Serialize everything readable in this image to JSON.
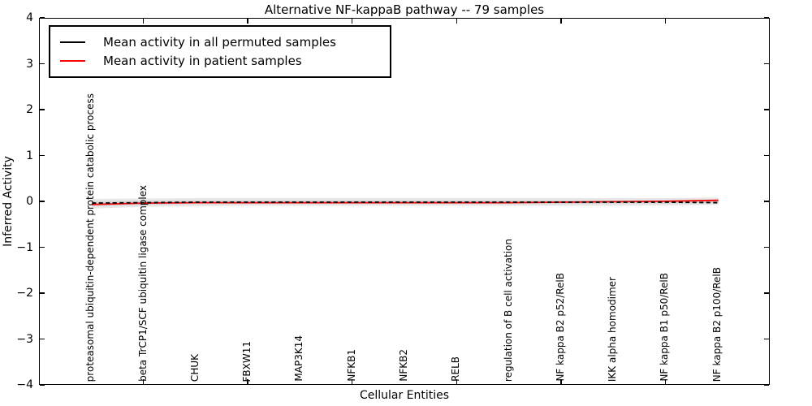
{
  "figure": {
    "title": "Alternative NF-kappaB pathway -- 79 samples",
    "xlabel": "Cellular Entities",
    "ylabel": "Inferred Activity"
  },
  "legend": {
    "position": "upper left",
    "entries": [
      {
        "label": "Mean activity in all permuted samples",
        "color": "#000000"
      },
      {
        "label": "Mean activity in patient samples",
        "color": "#ff0000"
      }
    ]
  },
  "chart_data": {
    "type": "line",
    "title": "Alternative NF-kappaB pathway -- 79 samples",
    "xlabel": "Cellular Entities",
    "ylabel": "Inferred Activity",
    "ylim": [
      -4,
      4
    ],
    "yticks": [
      4,
      3,
      2,
      1,
      0,
      -1,
      -2,
      -3,
      -4
    ],
    "xlim_units": [
      0,
      14
    ],
    "xtick_units": [
      2,
      4,
      6,
      8,
      10,
      12
    ],
    "grid": false,
    "legend_position": "upper left",
    "categories": [
      "proteasomal ubiquitin-dependent protein catabolic process",
      "beta TrCP1/SCF ubiquitin ligase complex",
      "CHUK",
      "FBXW11",
      "MAP3K14",
      "NFKB1",
      "NFKB2",
      "RELB",
      "regulation of B cell activation",
      "NF kappa B2 p52/RelB",
      "IKK alpha homodimer",
      "NF kappa B1 p50/RelB",
      "NF kappa B2 p100/RelB"
    ],
    "series": [
      {
        "name": "Mean activity in all permuted samples",
        "color": "#000000",
        "style": "dashed",
        "values": [
          -0.02,
          -0.01,
          0.0,
          0.0,
          0.0,
          0.0,
          0.0,
          0.0,
          0.0,
          0.0,
          0.0,
          0.0,
          -0.01
        ]
      },
      {
        "name": "Mean activity in patient samples",
        "color": "#ff0000",
        "style": "solid",
        "values": [
          -0.05,
          -0.02,
          -0.01,
          -0.01,
          -0.01,
          -0.01,
          -0.01,
          -0.01,
          -0.01,
          0.0,
          0.01,
          0.02,
          0.04
        ]
      }
    ],
    "bands": [
      {
        "name": "outer-confidence-band",
        "color": "#e7e7e7",
        "upper": [
          0.07,
          0.08,
          0.09,
          0.09,
          0.09,
          0.09,
          0.09,
          0.09,
          0.09,
          0.09,
          0.09,
          0.09,
          0.1
        ],
        "lower": [
          -0.14,
          -0.1,
          -0.09,
          -0.08,
          -0.08,
          -0.08,
          -0.08,
          -0.08,
          -0.08,
          -0.08,
          -0.08,
          -0.07,
          -0.06
        ]
      },
      {
        "name": "inner-confidence-band",
        "color": "#d3d3d3",
        "upper": [
          0.02,
          0.03,
          0.04,
          0.04,
          0.04,
          0.04,
          0.04,
          0.04,
          0.04,
          0.04,
          0.04,
          0.05,
          0.06
        ],
        "lower": [
          -0.09,
          -0.06,
          -0.04,
          -0.04,
          -0.04,
          -0.04,
          -0.04,
          -0.04,
          -0.04,
          -0.04,
          -0.03,
          -0.03,
          -0.02
        ]
      }
    ]
  }
}
